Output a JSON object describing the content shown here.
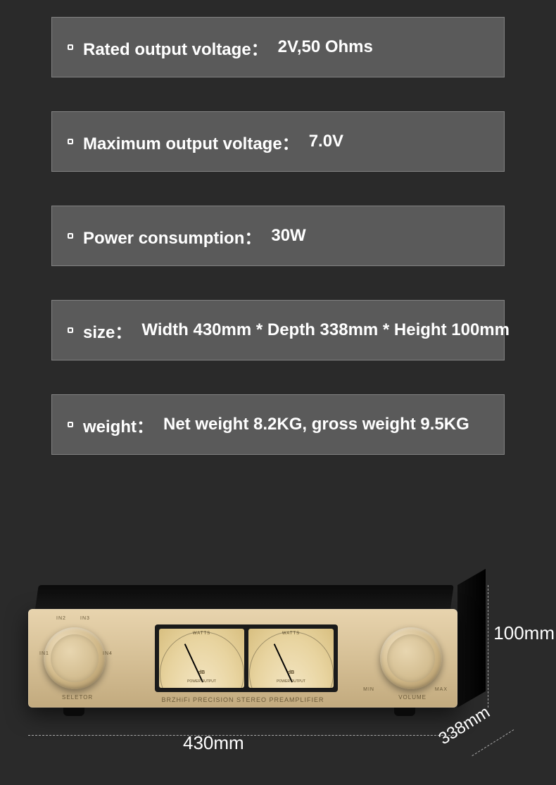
{
  "theme": {
    "background": "#2a2a2a",
    "box_bg": "rgba(130,130,130,0.55)",
    "box_border": "rgba(170,170,170,0.5)",
    "text_color": "#ffffff",
    "font_size_spec": 24,
    "font_weight": "bold"
  },
  "specs": [
    {
      "label": "Rated output voltage：",
      "value": "2V,50 Ohms"
    },
    {
      "label": "Maximum output voltage：",
      "value": "7.0V"
    },
    {
      "label": "Power consumption：",
      "value": "30W"
    },
    {
      "label": "size：",
      "value": "Width 430mm * Depth 338mm * Height 100mm"
    },
    {
      "label": "weight：",
      "value": "Net weight 8.2KG, gross weight 9.5KG"
    }
  ],
  "product": {
    "brand_text": "BRZHiFi PRECISION STEREO PREAMPLIFIER",
    "selector_label": "SELETOR",
    "volume_label": "VOLUME",
    "min_label": "MIN",
    "max_label": "MAX",
    "inputs": {
      "in1": "IN1",
      "in2": "IN2",
      "in3": "IN3",
      "in4": "IN4"
    },
    "meter": {
      "watts_label": "WATTS",
      "db_label": "dB",
      "power_output_label": "POWER OUTPUT"
    },
    "face_color_top": "#e8d4ae",
    "face_color_bottom": "#c2aa7e",
    "knob_color": "#d0b888",
    "meter_bg": "#e8d4a0"
  },
  "dimensions": {
    "width": "430mm",
    "height": "100mm",
    "depth": "338mm"
  }
}
